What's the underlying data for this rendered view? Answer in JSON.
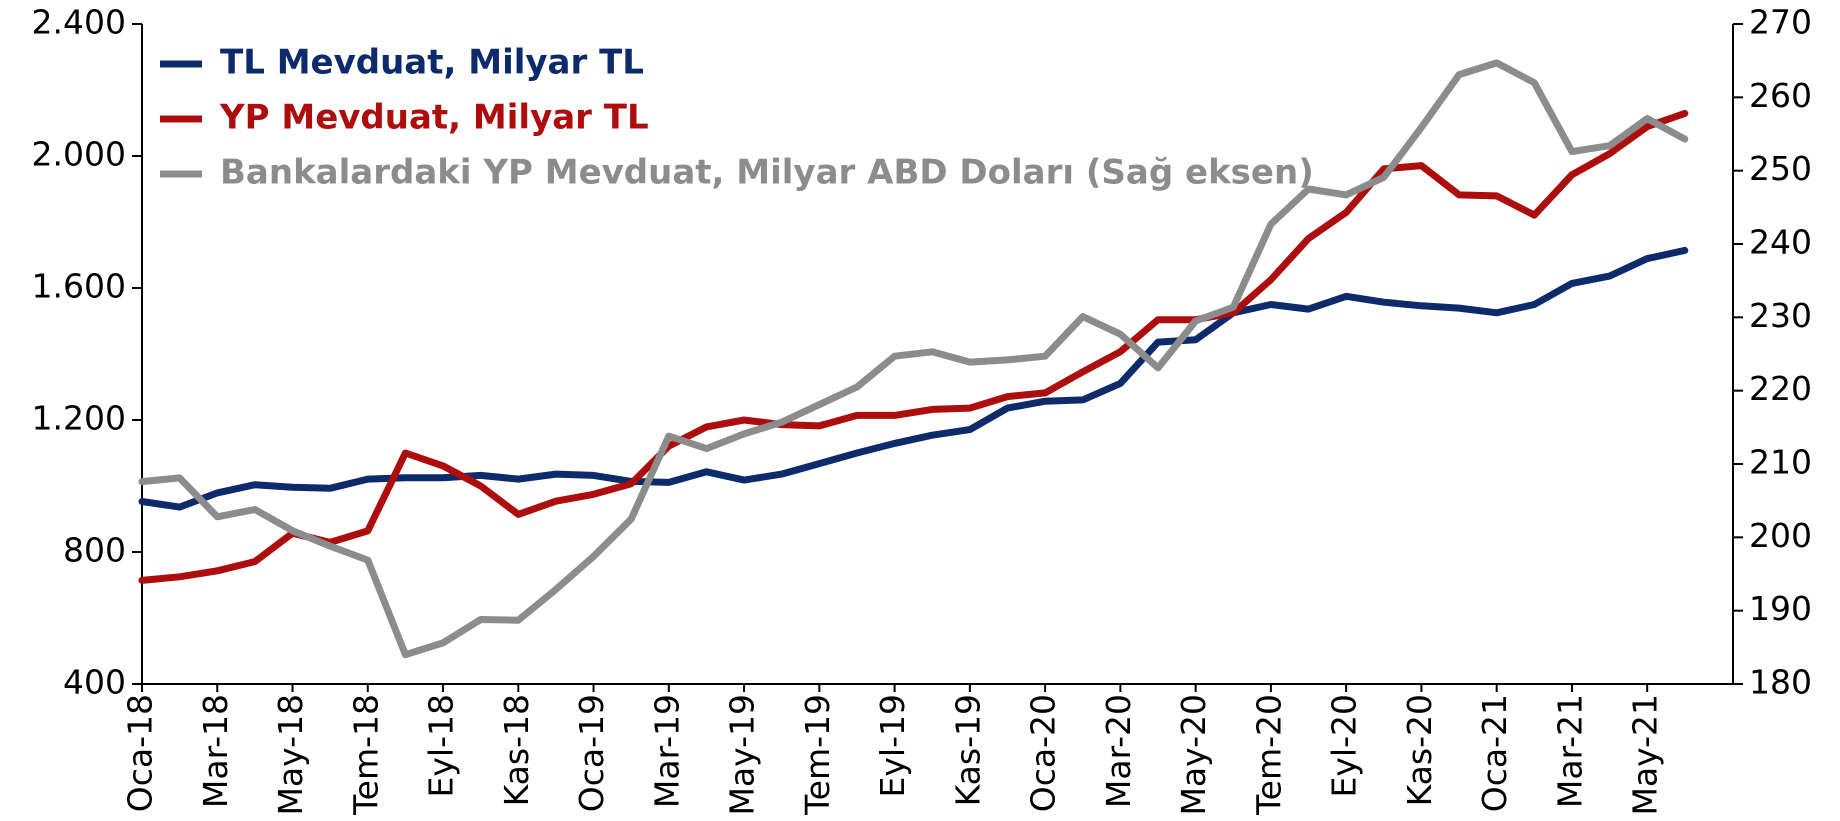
{
  "chart_data": {
    "type": "line",
    "categories": [
      "Oca-18",
      null,
      "Mar-18",
      null,
      "May-18",
      null,
      "Tem-18",
      null,
      "Eyl-18",
      null,
      "Kas-18",
      null,
      "Oca-19",
      null,
      "Mar-19",
      null,
      "May-19",
      null,
      "Tem-19",
      null,
      "Eyl-19",
      null,
      "Kas-19",
      null,
      "Oca-20",
      null,
      "Mar-20",
      null,
      "May-20",
      null,
      "Tem-20",
      null,
      "Eyl-20",
      null,
      "Kas-20",
      null,
      "Oca-21",
      null,
      "Mar-21",
      null,
      "May-21",
      null
    ],
    "series": [
      {
        "name": "TL Mevduat, Milyar TL",
        "color": "#0d2a6b",
        "values": [
          953,
          936,
          979,
          1004,
          996,
          993,
          1021,
          1025,
          1025,
          1032,
          1021,
          1036,
          1032,
          1014,
          1011,
          1043,
          1018,
          1036,
          1068,
          1100,
          1129,
          1154,
          1171,
          1236,
          1257,
          1261,
          1311,
          1436,
          1443,
          1525,
          1550,
          1536,
          1575,
          1557,
          1546,
          1539,
          1525,
          1550,
          1614,
          1636,
          1689,
          1714
        ]
      },
      {
        "name": "YP Mevduat, Milyar TL",
        "color": "#ad0d0d",
        "values": [
          714,
          725,
          743,
          771,
          857,
          829,
          864,
          1100,
          1061,
          1000,
          914,
          954,
          975,
          1007,
          1121,
          1179,
          1200,
          1186,
          1182,
          1214,
          1214,
          1232,
          1236,
          1271,
          1282,
          1346,
          1407,
          1504,
          1504,
          1525,
          1625,
          1750,
          1829,
          1961,
          1971,
          1882,
          1879,
          1821,
          1943,
          2007,
          2089,
          2129
        ]
      },
      {
        "name": "Bankalardaki YP Mevduat, Milyar ABD Doları (Sağ eksen)",
        "color": "#8c8c8c",
        "axis": "y2",
        "values": [
          207.6,
          208.1,
          202.8,
          203.8,
          200.9,
          198.8,
          196.9,
          184.0,
          185.6,
          188.8,
          188.7,
          192.9,
          197.4,
          202.5,
          213.8,
          212.1,
          214.1,
          215.7,
          218.1,
          220.5,
          224.7,
          225.3,
          223.9,
          224.2,
          224.7,
          230.1,
          227.7,
          223.1,
          229.5,
          231.4,
          242.7,
          247.5,
          246.7,
          249.1,
          255.9,
          263.1,
          264.7,
          262.0,
          252.6,
          253.4,
          257.1,
          254.3
        ]
      }
    ],
    "ylim": [
      400,
      2400
    ],
    "yticks": [
      400,
      800,
      {
        "value": 1200,
        "label": "1.200"
      },
      {
        "value": 1600,
        "label": "1.600"
      },
      {
        "value": 2000,
        "label": "2.000"
      },
      {
        "value": 2400,
        "label": "2.400"
      }
    ],
    "y2lim": [
      180,
      270
    ],
    "y2ticks": [
      180,
      190,
      200,
      210,
      220,
      230,
      240,
      250,
      260,
      270
    ],
    "legend": "upper left"
  }
}
